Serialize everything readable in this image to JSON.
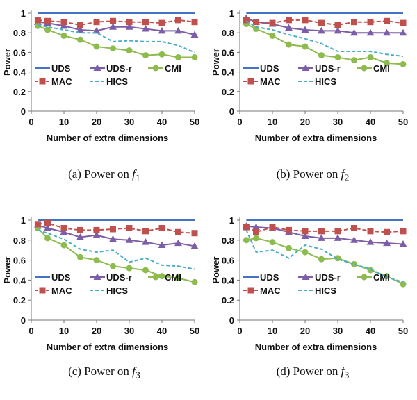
{
  "chart_data": [
    {
      "type": "line",
      "caption": "(a)  Power on",
      "caption_math": "f",
      "caption_sub": "1",
      "xlabel": "Number of extra dimensions",
      "ylabel": "Power",
      "xlim": [
        0,
        50
      ],
      "ylim": [
        0,
        1
      ],
      "xticks": [
        "0",
        "10",
        "20",
        "30",
        "40",
        "50"
      ],
      "yticks": [
        "0",
        "0.2",
        "0.4",
        "0.6",
        "0.8",
        "1"
      ],
      "grid": false,
      "legend_placement": "bottom",
      "x": [
        2,
        5,
        10,
        15,
        20,
        25,
        30,
        35,
        40,
        45,
        50
      ],
      "series": [
        {
          "name": "UDS",
          "color": "#4472c4",
          "marker": "none",
          "dash": "solid",
          "values": [
            1,
            1,
            1,
            1,
            1,
            1,
            1,
            1,
            1,
            1,
            1
          ]
        },
        {
          "name": "UDS-r",
          "color": "#7b5ea7",
          "marker": "triangle",
          "dash": "solid",
          "values": [
            0.91,
            0.9,
            0.87,
            0.83,
            0.82,
            0.86,
            0.86,
            0.84,
            0.82,
            0.82,
            0.78
          ]
        },
        {
          "name": "CMI",
          "color": "#8dbb4e",
          "marker": "circle",
          "dash": "solid",
          "values": [
            0.87,
            0.83,
            0.77,
            0.73,
            0.66,
            0.64,
            0.62,
            0.57,
            0.58,
            0.55,
            0.55
          ]
        },
        {
          "name": "MAC",
          "color": "#c0504d",
          "marker": "square",
          "dash": "dashed",
          "values": [
            0.93,
            0.92,
            0.91,
            0.88,
            0.91,
            0.92,
            0.91,
            0.91,
            0.9,
            0.93,
            0.91
          ]
        },
        {
          "name": "HICS",
          "color": "#4bacc6",
          "marker": "none",
          "dash": "dashed",
          "values": [
            0.88,
            0.86,
            0.83,
            0.8,
            0.8,
            0.71,
            0.72,
            0.71,
            0.71,
            0.67,
            0.6
          ]
        }
      ]
    },
    {
      "type": "line",
      "caption": "(b)  Power on",
      "caption_math": "f",
      "caption_sub": "2",
      "xlabel": "Number of extra dimensions",
      "ylabel": "Power",
      "xlim": [
        0,
        50
      ],
      "ylim": [
        0,
        1
      ],
      "xticks": [
        "0",
        "10",
        "20",
        "30",
        "40",
        "50"
      ],
      "yticks": [
        "0",
        "0.2",
        "0.4",
        "0.6",
        "0.8",
        "1"
      ],
      "grid": false,
      "legend_placement": "bottom",
      "x": [
        2,
        5,
        10,
        15,
        20,
        25,
        30,
        35,
        40,
        45,
        50
      ],
      "series": [
        {
          "name": "UDS",
          "color": "#4472c4",
          "marker": "none",
          "dash": "solid",
          "values": [
            1,
            1,
            1,
            1,
            1,
            1,
            1,
            1,
            1,
            1,
            1
          ]
        },
        {
          "name": "UDS-r",
          "color": "#7b5ea7",
          "marker": "triangle",
          "dash": "solid",
          "values": [
            0.95,
            0.91,
            0.89,
            0.85,
            0.83,
            0.82,
            0.82,
            0.8,
            0.8,
            0.8,
            0.8
          ]
        },
        {
          "name": "CMI",
          "color": "#8dbb4e",
          "marker": "circle",
          "dash": "solid",
          "values": [
            0.89,
            0.84,
            0.77,
            0.68,
            0.66,
            0.57,
            0.55,
            0.52,
            0.55,
            0.49,
            0.48
          ]
        },
        {
          "name": "MAC",
          "color": "#c0504d",
          "marker": "square",
          "dash": "dashed",
          "values": [
            0.93,
            0.91,
            0.9,
            0.93,
            0.93,
            0.9,
            0.88,
            0.91,
            0.91,
            0.92,
            0.9
          ]
        },
        {
          "name": "HICS",
          "color": "#4bacc6",
          "marker": "none",
          "dash": "dashed",
          "values": [
            0.92,
            0.86,
            0.83,
            0.78,
            0.74,
            0.69,
            0.61,
            0.61,
            0.61,
            0.58,
            0.56
          ]
        }
      ]
    },
    {
      "type": "line",
      "caption": "(c)  Power on",
      "caption_math": "f",
      "caption_sub": "3",
      "xlabel": "Number of extra dimensions",
      "ylabel": "Power",
      "xlim": [
        0,
        50
      ],
      "ylim": [
        0,
        1
      ],
      "xticks": [
        "0",
        "10",
        "20",
        "30",
        "40",
        "50"
      ],
      "yticks": [
        "0",
        "0.2",
        "0.4",
        "0.6",
        "0.8",
        "1"
      ],
      "grid": false,
      "legend_placement": "bottom",
      "x": [
        2,
        5,
        10,
        15,
        20,
        25,
        30,
        35,
        40,
        45,
        50
      ],
      "series": [
        {
          "name": "UDS",
          "color": "#4472c4",
          "marker": "none",
          "dash": "solid",
          "values": [
            1,
            1,
            1,
            1,
            1,
            1,
            1,
            1,
            1,
            1,
            1
          ]
        },
        {
          "name": "UDS-r",
          "color": "#7b5ea7",
          "marker": "triangle",
          "dash": "solid",
          "values": [
            0.95,
            0.92,
            0.88,
            0.83,
            0.85,
            0.81,
            0.8,
            0.78,
            0.75,
            0.77,
            0.74
          ]
        },
        {
          "name": "CMI",
          "color": "#8dbb4e",
          "marker": "circle",
          "dash": "solid",
          "values": [
            0.92,
            0.82,
            0.75,
            0.63,
            0.6,
            0.54,
            0.52,
            0.5,
            0.44,
            0.42,
            0.38
          ]
        },
        {
          "name": "MAC",
          "color": "#c0504d",
          "marker": "square",
          "dash": "dashed",
          "values": [
            0.96,
            0.97,
            0.92,
            0.9,
            0.9,
            0.91,
            0.92,
            0.89,
            0.92,
            0.88,
            0.87
          ]
        },
        {
          "name": "HICS",
          "color": "#4bacc6",
          "marker": "none",
          "dash": "dashed",
          "values": [
            0.9,
            0.87,
            0.81,
            0.71,
            0.68,
            0.7,
            0.58,
            0.62,
            0.55,
            0.54,
            0.51
          ]
        }
      ]
    },
    {
      "type": "line",
      "caption": "(d)  Power on",
      "caption_math": "f",
      "caption_sub": "3",
      "xlabel": "Number of extra dimensions",
      "ylabel": "Power",
      "xlim": [
        0,
        50
      ],
      "ylim": [
        0,
        1
      ],
      "xticks": [
        "0",
        "10",
        "20",
        "30",
        "40",
        "50"
      ],
      "yticks": [
        "0",
        "0.2",
        "0.4",
        "0.6",
        "0.8",
        "1"
      ],
      "grid": false,
      "legend_placement": "bottom",
      "x": [
        2,
        5,
        10,
        15,
        20,
        25,
        30,
        35,
        40,
        45,
        50
      ],
      "series": [
        {
          "name": "UDS",
          "color": "#4472c4",
          "marker": "none",
          "dash": "solid",
          "values": [
            1,
            1,
            1,
            1,
            1,
            1,
            1,
            1,
            1,
            1,
            1
          ]
        },
        {
          "name": "UDS-r",
          "color": "#7b5ea7",
          "marker": "triangle",
          "dash": "solid",
          "values": [
            0.94,
            0.93,
            0.92,
            0.88,
            0.84,
            0.82,
            0.82,
            0.8,
            0.78,
            0.77,
            0.76
          ]
        },
        {
          "name": "CMI",
          "color": "#8dbb4e",
          "marker": "circle",
          "dash": "solid",
          "values": [
            0.8,
            0.82,
            0.78,
            0.72,
            0.68,
            0.61,
            0.62,
            0.56,
            0.5,
            0.44,
            0.36
          ]
        },
        {
          "name": "MAC",
          "color": "#c0504d",
          "marker": "square",
          "dash": "dashed",
          "values": [
            0.93,
            0.88,
            0.93,
            0.9,
            0.89,
            0.89,
            0.89,
            0.92,
            0.89,
            0.88,
            0.89
          ]
        },
        {
          "name": "HICS",
          "color": "#4bacc6",
          "marker": "none",
          "dash": "dashed",
          "values": [
            0.9,
            0.68,
            0.7,
            0.62,
            0.75,
            0.71,
            0.61,
            0.56,
            0.51,
            0.43,
            0.38
          ]
        }
      ]
    }
  ]
}
